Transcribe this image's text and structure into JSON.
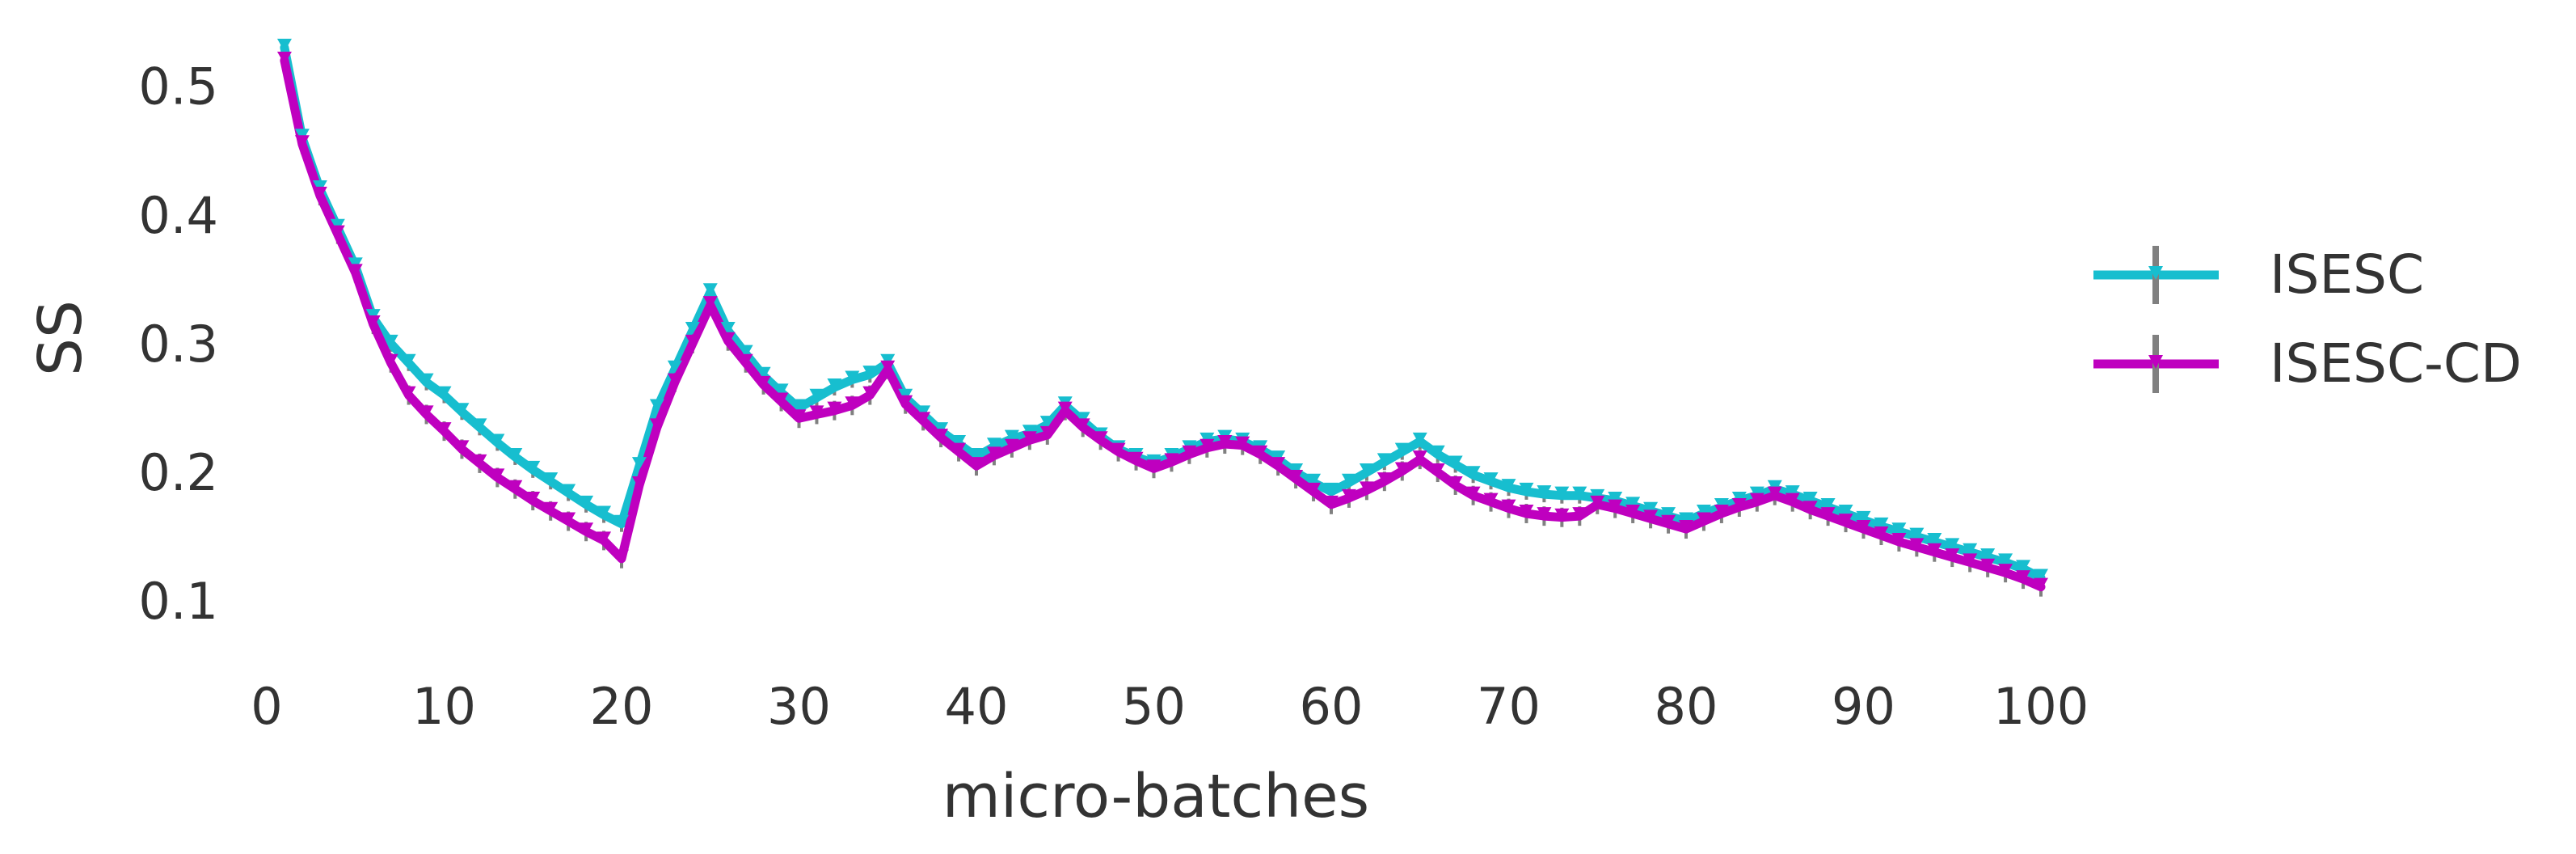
{
  "chart_data": {
    "type": "line",
    "title": "",
    "xlabel": "micro-batches",
    "ylabel": "SS",
    "xlim": [
      0,
      100
    ],
    "ylim": [
      0.08,
      0.54
    ],
    "x_ticks": [
      0,
      10,
      20,
      30,
      40,
      50,
      60,
      70,
      80,
      90,
      100
    ],
    "x_tick_labels": [
      "0",
      "10",
      "20",
      "30",
      "40",
      "50",
      "60",
      "70",
      "80",
      "90",
      "100"
    ],
    "y_ticks": [
      0.1,
      0.2,
      0.3,
      0.4,
      0.5
    ],
    "y_tick_labels": [
      "0.1",
      "0.2",
      "0.3",
      "0.4",
      "0.5"
    ],
    "grid": false,
    "legend_position": "right",
    "error_bar_color": "#808080",
    "series": [
      {
        "name": "ISESC",
        "color": "#17BECF",
        "x": [
          1,
          2,
          3,
          4,
          5,
          6,
          7,
          8,
          9,
          10,
          11,
          12,
          13,
          14,
          15,
          16,
          17,
          18,
          19,
          20,
          21,
          22,
          23,
          24,
          25,
          26,
          27,
          28,
          29,
          30,
          31,
          32,
          33,
          34,
          35,
          36,
          37,
          38,
          39,
          40,
          41,
          42,
          43,
          44,
          45,
          46,
          47,
          48,
          49,
          50,
          51,
          52,
          53,
          54,
          55,
          56,
          57,
          58,
          59,
          60,
          61,
          62,
          63,
          64,
          65,
          66,
          67,
          68,
          69,
          70,
          71,
          72,
          73,
          74,
          75,
          76,
          77,
          78,
          79,
          80,
          81,
          82,
          83,
          84,
          85,
          86,
          87,
          88,
          89,
          90,
          91,
          92,
          93,
          94,
          95,
          96,
          97,
          98,
          99,
          100
        ],
        "y": [
          0.53,
          0.46,
          0.42,
          0.39,
          0.36,
          0.32,
          0.3,
          0.285,
          0.27,
          0.26,
          0.247,
          0.235,
          0.223,
          0.212,
          0.202,
          0.193,
          0.184,
          0.175,
          0.167,
          0.16,
          0.205,
          0.25,
          0.28,
          0.31,
          0.34,
          0.31,
          0.292,
          0.275,
          0.262,
          0.25,
          0.258,
          0.266,
          0.272,
          0.276,
          0.285,
          0.258,
          0.245,
          0.232,
          0.222,
          0.212,
          0.22,
          0.226,
          0.23,
          0.237,
          0.252,
          0.24,
          0.228,
          0.218,
          0.212,
          0.207,
          0.212,
          0.218,
          0.224,
          0.226,
          0.224,
          0.218,
          0.21,
          0.2,
          0.192,
          0.185,
          0.192,
          0.2,
          0.208,
          0.216,
          0.224,
          0.214,
          0.206,
          0.198,
          0.193,
          0.188,
          0.185,
          0.183,
          0.182,
          0.182,
          0.18,
          0.178,
          0.174,
          0.17,
          0.166,
          0.162,
          0.168,
          0.173,
          0.178,
          0.182,
          0.187,
          0.183,
          0.178,
          0.173,
          0.168,
          0.163,
          0.158,
          0.154,
          0.15,
          0.146,
          0.142,
          0.138,
          0.134,
          0.13,
          0.125,
          0.118
        ]
      },
      {
        "name": "ISESC-CD",
        "color": "#BF00BF",
        "x": [
          1,
          2,
          3,
          4,
          5,
          6,
          7,
          8,
          9,
          10,
          11,
          12,
          13,
          14,
          15,
          16,
          17,
          18,
          19,
          20,
          21,
          22,
          23,
          24,
          25,
          26,
          27,
          28,
          29,
          30,
          31,
          32,
          33,
          34,
          35,
          36,
          37,
          38,
          39,
          40,
          41,
          42,
          43,
          44,
          45,
          46,
          47,
          48,
          49,
          50,
          51,
          52,
          53,
          54,
          55,
          56,
          57,
          58,
          59,
          60,
          61,
          62,
          63,
          64,
          65,
          66,
          67,
          68,
          69,
          70,
          71,
          72,
          73,
          74,
          75,
          76,
          77,
          78,
          79,
          80,
          81,
          82,
          83,
          84,
          85,
          86,
          87,
          88,
          89,
          90,
          91,
          92,
          93,
          94,
          95,
          96,
          97,
          98,
          99,
          100
        ],
        "y": [
          0.52,
          0.455,
          0.415,
          0.385,
          0.355,
          0.315,
          0.285,
          0.26,
          0.245,
          0.232,
          0.218,
          0.207,
          0.196,
          0.187,
          0.178,
          0.17,
          0.162,
          0.154,
          0.147,
          0.133,
          0.19,
          0.235,
          0.27,
          0.3,
          0.33,
          0.302,
          0.285,
          0.268,
          0.255,
          0.242,
          0.245,
          0.248,
          0.252,
          0.26,
          0.28,
          0.253,
          0.24,
          0.227,
          0.216,
          0.205,
          0.213,
          0.219,
          0.225,
          0.229,
          0.248,
          0.235,
          0.225,
          0.216,
          0.209,
          0.203,
          0.208,
          0.214,
          0.219,
          0.222,
          0.221,
          0.214,
          0.205,
          0.195,
          0.185,
          0.175,
          0.18,
          0.186,
          0.193,
          0.201,
          0.21,
          0.2,
          0.19,
          0.182,
          0.177,
          0.172,
          0.168,
          0.166,
          0.165,
          0.166,
          0.175,
          0.172,
          0.168,
          0.164,
          0.16,
          0.156,
          0.162,
          0.168,
          0.173,
          0.177,
          0.182,
          0.177,
          0.171,
          0.166,
          0.161,
          0.156,
          0.151,
          0.146,
          0.142,
          0.138,
          0.134,
          0.13,
          0.126,
          0.122,
          0.117,
          0.111
        ]
      }
    ]
  }
}
